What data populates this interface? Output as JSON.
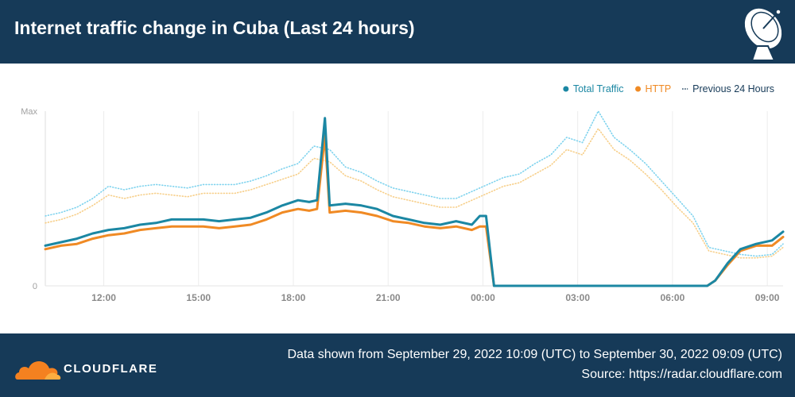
{
  "header": {
    "title": "Internet traffic change in Cuba (Last 24 hours)"
  },
  "footer": {
    "brand": "CLOUDFLARE",
    "range_text": "Data shown from September 29, 2022 10:09 (UTC) to September 30, 2022 09:09 (UTC)",
    "source_text": "Source: https://radar.cloudflare.com"
  },
  "colors": {
    "header_bg": "#163a58",
    "total_traffic": "#1b87a3",
    "http": "#f08a24",
    "prev_total": "#7fd3ee",
    "prev_http": "#f7cf8a",
    "cloudflare_orange": "#f48120"
  },
  "chart_data": {
    "type": "line",
    "x_unit": "hours since start (start = Sept 29, 2022 10:09 UTC)",
    "y_unit": "relative traffic (0 = none, 1 = Max)",
    "ylim": [
      0,
      1
    ],
    "y_ticks": [
      {
        "value": 0,
        "label": "0"
      },
      {
        "value": 1,
        "label": "Max"
      }
    ],
    "x_ticks": [
      {
        "value": 1.85,
        "label": "12:00"
      },
      {
        "value": 4.85,
        "label": "15:00"
      },
      {
        "value": 7.85,
        "label": "18:00"
      },
      {
        "value": 10.85,
        "label": "21:00"
      },
      {
        "value": 13.85,
        "label": "00:00"
      },
      {
        "value": 16.85,
        "label": "03:00"
      },
      {
        "value": 19.85,
        "label": "06:00"
      },
      {
        "value": 22.85,
        "label": "09:00"
      }
    ],
    "xlim": [
      0,
      23.35
    ],
    "legend": [
      {
        "label": "Total Traffic",
        "style": "dot",
        "color": "#1b87a3",
        "text_color": "#1b87a3"
      },
      {
        "label": "HTTP",
        "style": "dot",
        "color": "#f08a24",
        "text_color": "#f08a24"
      },
      {
        "label": "Previous 24 Hours",
        "style": "dashes",
        "color": "#163a58",
        "text_color": "#163a58"
      }
    ],
    "legend_position": "top-right",
    "grid": "vertical",
    "series": [
      {
        "name": "Previous 24 Hours (Total)",
        "style": "dotted",
        "color": "#7fd3ee",
        "x": [
          0,
          0.5,
          1,
          1.5,
          2,
          2.5,
          3,
          3.5,
          4,
          4.5,
          5,
          5.5,
          6,
          6.5,
          7,
          7.5,
          8,
          8.5,
          9,
          9.5,
          10,
          10.5,
          11,
          11.5,
          12,
          12.5,
          13,
          13.5,
          14,
          14.5,
          15,
          15.5,
          16,
          16.5,
          17,
          17.5,
          18,
          18.5,
          19,
          19.5,
          20,
          20.5,
          21,
          21.5,
          22,
          22.5,
          23,
          23.35
        ],
        "y": [
          0.4,
          0.42,
          0.45,
          0.5,
          0.57,
          0.55,
          0.57,
          0.58,
          0.57,
          0.56,
          0.58,
          0.58,
          0.58,
          0.6,
          0.63,
          0.67,
          0.7,
          0.8,
          0.78,
          0.68,
          0.65,
          0.6,
          0.56,
          0.54,
          0.52,
          0.5,
          0.5,
          0.54,
          0.58,
          0.62,
          0.64,
          0.7,
          0.75,
          0.85,
          0.82,
          1.0,
          0.85,
          0.78,
          0.7,
          0.6,
          0.5,
          0.4,
          0.22,
          0.2,
          0.18,
          0.17,
          0.18,
          0.24
        ]
      },
      {
        "name": "Previous 24 Hours (HTTP)",
        "style": "dotted",
        "color": "#f7cf8a",
        "x": [
          0,
          0.5,
          1,
          1.5,
          2,
          2.5,
          3,
          3.5,
          4,
          4.5,
          5,
          5.5,
          6,
          6.5,
          7,
          7.5,
          8,
          8.5,
          9,
          9.5,
          10,
          10.5,
          11,
          11.5,
          12,
          12.5,
          13,
          13.5,
          14,
          14.5,
          15,
          15.5,
          16,
          16.5,
          17,
          17.5,
          18,
          18.5,
          19,
          19.5,
          20,
          20.5,
          21,
          21.5,
          22,
          22.5,
          23,
          23.35
        ],
        "y": [
          0.36,
          0.38,
          0.41,
          0.46,
          0.52,
          0.5,
          0.52,
          0.53,
          0.52,
          0.51,
          0.53,
          0.53,
          0.53,
          0.55,
          0.58,
          0.61,
          0.64,
          0.73,
          0.71,
          0.63,
          0.6,
          0.55,
          0.51,
          0.49,
          0.47,
          0.45,
          0.45,
          0.49,
          0.53,
          0.57,
          0.59,
          0.64,
          0.69,
          0.78,
          0.75,
          0.9,
          0.78,
          0.72,
          0.64,
          0.55,
          0.45,
          0.36,
          0.2,
          0.18,
          0.16,
          0.16,
          0.17,
          0.22
        ]
      },
      {
        "name": "HTTP",
        "style": "solid",
        "color": "#f08a24",
        "x": [
          0,
          0.5,
          1,
          1.5,
          2,
          2.5,
          3,
          3.5,
          4,
          4.5,
          5,
          5.5,
          6,
          6.5,
          7,
          7.5,
          8,
          8.35,
          8.6,
          8.85,
          9,
          9.5,
          10,
          10.5,
          11,
          11.5,
          12,
          12.5,
          13,
          13.5,
          13.75,
          13.95,
          14.2,
          14.6,
          15,
          15.5,
          16,
          16.5,
          17,
          17.5,
          18,
          18.5,
          19,
          19.5,
          20,
          20.5,
          20.95,
          21.2,
          21.6,
          22,
          22.5,
          23,
          23.35
        ],
        "y": [
          0.21,
          0.23,
          0.24,
          0.27,
          0.29,
          0.3,
          0.32,
          0.33,
          0.34,
          0.34,
          0.34,
          0.33,
          0.34,
          0.35,
          0.38,
          0.42,
          0.44,
          0.43,
          0.44,
          0.86,
          0.42,
          0.43,
          0.42,
          0.4,
          0.37,
          0.36,
          0.34,
          0.33,
          0.34,
          0.32,
          0.34,
          0.34,
          0.0,
          0.0,
          0.0,
          0.0,
          0.0,
          0.0,
          0.0,
          0.0,
          0.0,
          0.0,
          0.0,
          0.0,
          0.0,
          0.0,
          0.0,
          0.03,
          0.12,
          0.2,
          0.23,
          0.23,
          0.28
        ]
      },
      {
        "name": "Total Traffic",
        "style": "solid",
        "color": "#1b87a3",
        "x": [
          0,
          0.5,
          1,
          1.5,
          2,
          2.5,
          3,
          3.5,
          4,
          4.5,
          5,
          5.5,
          6,
          6.5,
          7,
          7.5,
          8,
          8.35,
          8.6,
          8.85,
          9,
          9.5,
          10,
          10.5,
          11,
          11.5,
          12,
          12.5,
          13,
          13.5,
          13.75,
          13.95,
          14.2,
          14.6,
          15,
          15.5,
          16,
          16.5,
          17,
          17.5,
          18,
          18.5,
          19,
          19.5,
          20,
          20.5,
          20.95,
          21.2,
          21.6,
          22,
          22.5,
          23,
          23.35
        ],
        "y": [
          0.23,
          0.25,
          0.27,
          0.3,
          0.32,
          0.33,
          0.35,
          0.36,
          0.38,
          0.38,
          0.38,
          0.37,
          0.38,
          0.39,
          0.42,
          0.46,
          0.49,
          0.48,
          0.49,
          0.96,
          0.46,
          0.47,
          0.46,
          0.44,
          0.4,
          0.38,
          0.36,
          0.35,
          0.37,
          0.35,
          0.4,
          0.4,
          0.0,
          0.0,
          0.0,
          0.0,
          0.0,
          0.0,
          0.0,
          0.0,
          0.0,
          0.0,
          0.0,
          0.0,
          0.0,
          0.0,
          0.0,
          0.03,
          0.13,
          0.21,
          0.24,
          0.26,
          0.31
        ]
      }
    ]
  }
}
